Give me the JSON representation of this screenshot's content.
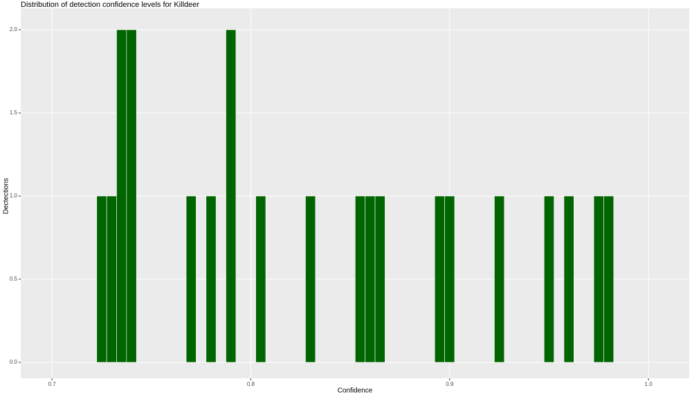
{
  "chart_data": {
    "type": "histogram",
    "title": "Distribution of detection confidence levels for Killdeer",
    "x_label": "Confidence",
    "y_label": "Dectections",
    "bins": [
      0.7225,
      0.7275,
      0.7325,
      0.7375,
      0.7425,
      0.7475,
      0.7525,
      0.7575,
      0.7625,
      0.7675,
      0.7725,
      0.7775,
      0.7825,
      0.7875,
      0.7925,
      0.7975,
      0.8025,
      0.8075,
      0.8125,
      0.8175,
      0.8225,
      0.8275,
      0.8325,
      0.8375,
      0.8425,
      0.8475,
      0.8525,
      0.8575,
      0.8625,
      0.8675,
      0.8725,
      0.8775,
      0.8825,
      0.8875,
      0.8925,
      0.8975,
      0.9025,
      0.9075,
      0.9125,
      0.9175,
      0.9225,
      0.9275,
      0.9325,
      0.9375,
      0.9425,
      0.9475,
      0.9525,
      0.9575,
      0.9625,
      0.9675,
      0.9725,
      0.9775,
      0.9825
    ],
    "values": [
      1,
      1,
      2,
      2,
      0,
      0,
      0,
      0,
      0,
      1,
      0,
      1,
      0,
      2,
      0,
      0,
      1,
      0,
      0,
      0,
      0,
      1,
      0,
      0,
      0,
      0,
      1,
      1,
      1,
      0,
      0,
      0,
      0,
      0,
      1,
      1,
      0,
      0,
      0,
      0,
      1,
      0,
      0,
      0,
      0,
      1,
      0,
      1,
      0,
      0,
      1,
      1
    ],
    "color": "#006400",
    "xlim": [
      0.6843,
      1.0205
    ],
    "xticks": [
      0.7,
      0.8,
      0.9,
      {
        "value": 1.0,
        "label": "1.0"
      }
    ],
    "ylim": [
      -0.096,
      2.129
    ],
    "yticks": [
      {
        "value": 0,
        "label": "0.0"
      },
      0.5,
      {
        "value": 1,
        "label": "1.0"
      },
      1.5,
      {
        "value": 2,
        "label": "2.0"
      }
    ],
    "grid": true
  }
}
